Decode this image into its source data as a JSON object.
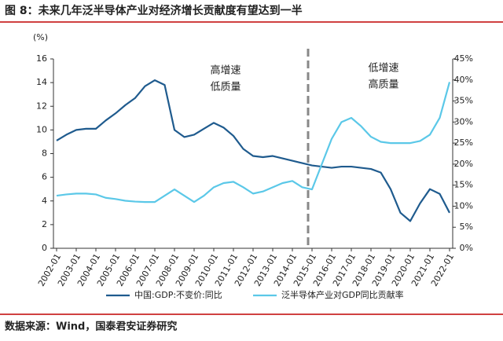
{
  "chart_data": {
    "type": "line",
    "title": "图 8：未来几年泛半导体产业对经济增长贡献度有望达到一半",
    "source": "数据来源：Wind，国泰君安证券研究",
    "y_unit": "(%)",
    "annotations": [
      "高增速",
      "低质量",
      "低增速",
      "高质量"
    ],
    "categories": [
      "2002-01",
      null,
      "2003-01",
      null,
      "2004-01",
      null,
      "2005-01",
      null,
      "2006-01",
      null,
      "2007-01",
      null,
      "2008-01",
      null,
      "2009-01",
      null,
      "2010-01",
      null,
      "2011-01",
      null,
      "2012-01",
      null,
      "2013-01",
      null,
      "2014-01",
      null,
      "2015-01",
      null,
      "2016-01",
      null,
      "2017-01",
      null,
      "2018-01",
      null,
      "2019-01",
      null,
      "2020-01",
      null,
      "2021-01",
      null,
      "2022-01"
    ],
    "series": [
      {
        "name": "中国:GDP:不变价:同比",
        "color": "#1f5b8e",
        "values": [
          9.1,
          9.6,
          10.0,
          10.1,
          10.1,
          10.8,
          11.4,
          12.1,
          12.7,
          13.7,
          14.2,
          13.8,
          10.0,
          9.4,
          9.6,
          10.1,
          10.6,
          10.2,
          9.5,
          8.4,
          7.8,
          7.7,
          7.8,
          7.6,
          7.4,
          7.2,
          7.0,
          6.9,
          6.8,
          6.9,
          6.9,
          6.8,
          6.7,
          6.4,
          5.0,
          3.0,
          2.3,
          3.8,
          5.0,
          4.6,
          3.0
        ]
      },
      {
        "name": "泛半导体产业对GDP同比贡献率",
        "color": "#5bc8e8",
        "axis": "y2",
        "values": [
          12.5,
          12.8,
          13.0,
          13.0,
          12.8,
          12.0,
          11.7,
          11.3,
          11.1,
          11.0,
          11.0,
          12.5,
          14.0,
          12.5,
          11.0,
          12.5,
          14.5,
          15.5,
          15.8,
          14.5,
          13.0,
          13.5,
          14.5,
          15.5,
          16.0,
          14.5,
          14.0,
          20,
          26,
          30,
          31,
          29,
          26.5,
          25.3,
          25.0,
          25.0,
          25.0,
          25.5,
          27,
          31,
          39.5
        ]
      }
    ],
    "ylim": [
      0,
      16
    ],
    "yticks": [
      0,
      2,
      4,
      6,
      8,
      10,
      12,
      14,
      16
    ],
    "y2lim": [
      0,
      45
    ],
    "y2ticks": [
      {
        "value": 0,
        "label": "0%"
      },
      {
        "value": 5,
        "label": "5%"
      },
      {
        "value": 10,
        "label": "10%"
      },
      {
        "value": 15,
        "label": "15%"
      },
      {
        "value": 20,
        "label": "20%"
      },
      {
        "value": 25,
        "label": "25%"
      },
      {
        "value": 30,
        "label": "30%"
      },
      {
        "value": 35,
        "label": "35%"
      },
      {
        "value": 40,
        "label": "40%"
      },
      {
        "value": 45,
        "label": "45%"
      }
    ],
    "grid": false
  }
}
